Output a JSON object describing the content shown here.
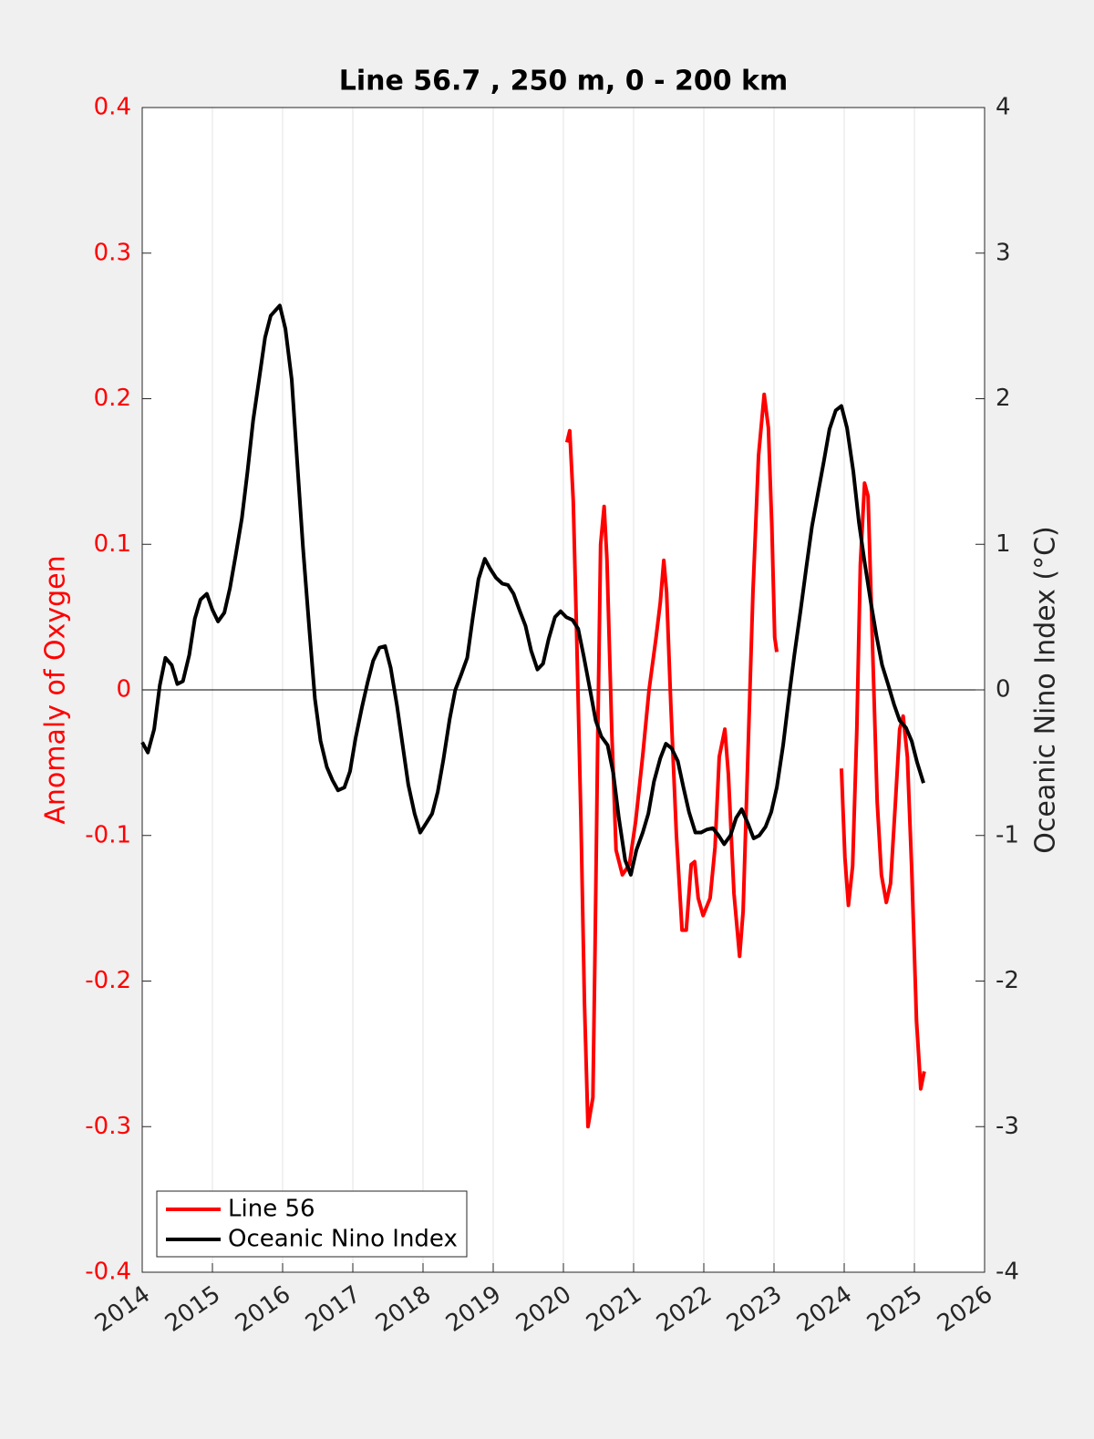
{
  "chart_data": {
    "type": "line",
    "title": "Line 56.7 , 250 m, 0 - 200 km",
    "ylabel": "Anomaly of Oxygen",
    "y2label": "Oceanic Nino Index (°C)",
    "xlim": [
      2014,
      2026
    ],
    "xticks": [
      2014,
      2015,
      2016,
      2017,
      2018,
      2019,
      2020,
      2021,
      2022,
      2023,
      2024,
      2025,
      2026
    ],
    "ylim": [
      -0.4,
      0.4
    ],
    "yticks": [
      -0.4,
      -0.3,
      -0.2,
      -0.1,
      0,
      0.1,
      0.2,
      0.3,
      0.4
    ],
    "y2lim": [
      -4,
      4
    ],
    "y2ticks": [
      -4,
      -3,
      -2,
      -1,
      0,
      1,
      2,
      3,
      4
    ],
    "xgrid": true,
    "legend": "lower left",
    "series": [
      {
        "name": "Line 56",
        "color": "#ff0000",
        "axis": "y",
        "x": [
          2020.05,
          2020.09,
          2020.14,
          2020.19,
          2020.25,
          2020.3,
          2020.35,
          2020.42,
          2020.45,
          2020.49,
          2020.53,
          2020.58,
          2020.62,
          2020.69,
          2020.75,
          2020.84,
          2020.94,
          2021.03,
          2021.13,
          2021.22,
          2021.32,
          2021.38,
          2021.43,
          2021.47,
          2021.53,
          2021.61,
          2021.69,
          2021.75,
          2021.82,
          2021.87,
          2021.92,
          2021.99,
          2022.09,
          2022.16,
          2022.22,
          2022.3,
          2022.35,
          2022.43,
          2022.51,
          2022.56,
          2022.62,
          2022.7,
          2022.78,
          2022.86,
          2022.92,
          2022.97,
          2023.01,
          2023.04,
          2023.5,
          2023.96,
          2024.01,
          2024.06,
          2024.12,
          2024.18,
          2024.23,
          2024.29,
          2024.34,
          2024.4,
          2024.47,
          2024.53,
          2024.6,
          2024.66,
          2024.73,
          2024.79,
          2024.84,
          2024.9,
          2024.96,
          2025.03,
          2025.09,
          2025.14
        ],
        "values": [
          0.17,
          0.178,
          0.13,
          0.035,
          -0.09,
          -0.215,
          -0.3,
          -0.28,
          -0.18,
          -0.03,
          0.1,
          0.126,
          0.09,
          -0.03,
          -0.11,
          -0.127,
          -0.12,
          -0.09,
          -0.045,
          0.0,
          0.036,
          0.06,
          0.089,
          0.067,
          -0.01,
          -0.1,
          -0.165,
          -0.165,
          -0.12,
          -0.118,
          -0.143,
          -0.155,
          -0.143,
          -0.108,
          -0.046,
          -0.027,
          -0.058,
          -0.14,
          -0.183,
          -0.152,
          -0.058,
          0.067,
          0.161,
          0.203,
          0.18,
          0.111,
          0.036,
          0.026,
          null,
          -0.054,
          -0.115,
          -0.148,
          -0.121,
          -0.027,
          0.086,
          0.142,
          0.133,
          0.036,
          -0.077,
          -0.127,
          -0.146,
          -0.133,
          -0.077,
          -0.027,
          -0.018,
          -0.046,
          -0.121,
          -0.227,
          -0.274,
          -0.262
        ]
      },
      {
        "name": "Oceanic Nino Index",
        "color": "#000000",
        "axis": "y2",
        "x": [
          2014.0,
          2014.08,
          2014.17,
          2014.25,
          2014.33,
          2014.42,
          2014.5,
          2014.58,
          2014.67,
          2014.75,
          2014.83,
          2014.92,
          2015.0,
          2015.08,
          2015.17,
          2015.25,
          2015.33,
          2015.42,
          2015.5,
          2015.58,
          2015.67,
          2015.75,
          2015.83,
          2015.96,
          2016.04,
          2016.13,
          2016.21,
          2016.29,
          2016.38,
          2016.46,
          2016.54,
          2016.63,
          2016.71,
          2016.79,
          2016.88,
          2016.96,
          2017.04,
          2017.13,
          2017.21,
          2017.29,
          2017.38,
          2017.46,
          2017.54,
          2017.63,
          2017.71,
          2017.79,
          2017.88,
          2017.96,
          2018.04,
          2018.13,
          2018.21,
          2018.29,
          2018.38,
          2018.46,
          2018.54,
          2018.63,
          2018.71,
          2018.79,
          2018.88,
          2018.96,
          2019.04,
          2019.13,
          2019.21,
          2019.29,
          2019.38,
          2019.46,
          2019.54,
          2019.63,
          2019.71,
          2019.79,
          2019.88,
          2019.96,
          2020.04,
          2020.13,
          2020.21,
          2020.29,
          2020.38,
          2020.46,
          2020.54,
          2020.63,
          2020.71,
          2020.79,
          2020.88,
          2020.96,
          2021.04,
          2021.13,
          2021.21,
          2021.29,
          2021.38,
          2021.46,
          2021.54,
          2021.63,
          2021.71,
          2021.79,
          2021.88,
          2021.96,
          2022.04,
          2022.13,
          2022.21,
          2022.29,
          2022.38,
          2022.46,
          2022.54,
          2022.63,
          2022.71,
          2022.79,
          2022.88,
          2022.96,
          2023.04,
          2023.13,
          2023.21,
          2023.29,
          2023.38,
          2023.46,
          2023.54,
          2023.63,
          2023.71,
          2023.79,
          2023.88,
          2023.96,
          2024.04,
          2024.13,
          2024.21,
          2024.29,
          2024.38,
          2024.46,
          2024.54,
          2024.63,
          2024.71,
          2024.79,
          2024.88,
          2024.96,
          2025.04,
          2025.13
        ],
        "values": [
          -0.36,
          -0.43,
          -0.27,
          0.03,
          0.22,
          0.17,
          0.04,
          0.06,
          0.24,
          0.49,
          0.62,
          0.66,
          0.55,
          0.47,
          0.53,
          0.7,
          0.92,
          1.18,
          1.5,
          1.85,
          2.15,
          2.42,
          2.57,
          2.64,
          2.48,
          2.13,
          1.55,
          0.98,
          0.42,
          -0.06,
          -0.35,
          -0.53,
          -0.62,
          -0.69,
          -0.67,
          -0.56,
          -0.33,
          -0.12,
          0.05,
          0.2,
          0.29,
          0.3,
          0.15,
          -0.11,
          -0.38,
          -0.65,
          -0.85,
          -0.98,
          -0.92,
          -0.85,
          -0.7,
          -0.48,
          -0.2,
          0.0,
          0.1,
          0.22,
          0.5,
          0.76,
          0.9,
          0.83,
          0.77,
          0.73,
          0.72,
          0.66,
          0.54,
          0.44,
          0.27,
          0.14,
          0.18,
          0.35,
          0.5,
          0.54,
          0.5,
          0.48,
          0.42,
          0.23,
          0.0,
          -0.21,
          -0.32,
          -0.38,
          -0.57,
          -0.88,
          -1.17,
          -1.27,
          -1.1,
          -0.98,
          -0.85,
          -0.63,
          -0.47,
          -0.37,
          -0.4,
          -0.49,
          -0.67,
          -0.84,
          -0.98,
          -0.98,
          -0.96,
          -0.95,
          -1.0,
          -1.06,
          -1.0,
          -0.88,
          -0.82,
          -0.92,
          -1.02,
          -1.0,
          -0.94,
          -0.84,
          -0.67,
          -0.38,
          -0.06,
          0.24,
          0.55,
          0.84,
          1.12,
          1.36,
          1.57,
          1.79,
          1.92,
          1.95,
          1.8,
          1.5,
          1.15,
          0.88,
          0.6,
          0.37,
          0.17,
          0.03,
          -0.1,
          -0.21,
          -0.26,
          -0.35,
          -0.5,
          -0.64
        ]
      }
    ]
  }
}
